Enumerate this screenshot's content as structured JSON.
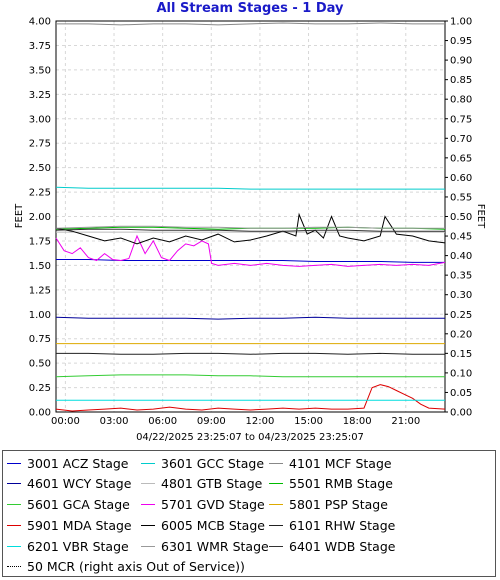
{
  "chart_data": {
    "type": "line",
    "title": "All Stream Stages - 1 Day",
    "ylabel": "FEET",
    "y2label": "FEET",
    "date_range": "04/22/2025 23:25:07 to 04/23/2025 23:25:07",
    "xlim": [
      0,
      24
    ],
    "ylim": [
      0,
      4
    ],
    "y2lim": [
      0,
      1
    ],
    "x_ticks": [
      {
        "value": 0.58,
        "label": "00:00"
      },
      {
        "value": 3.58,
        "label": "03:00"
      },
      {
        "value": 6.58,
        "label": "06:00"
      },
      {
        "value": 9.58,
        "label": "09:00"
      },
      {
        "value": 12.58,
        "label": "12:00"
      },
      {
        "value": 15.58,
        "label": "15:00"
      },
      {
        "value": 18.58,
        "label": "18:00"
      },
      {
        "value": 21.58,
        "label": "21:00"
      }
    ],
    "y_ticks": [
      "0.00",
      "0.25",
      "0.50",
      "0.75",
      "1.00",
      "1.25",
      "1.50",
      "1.75",
      "2.00",
      "2.25",
      "2.50",
      "2.75",
      "3.00",
      "3.25",
      "3.50",
      "3.75",
      "4.00"
    ],
    "y2_ticks": [
      "0.00",
      "0.05",
      "0.10",
      "0.15",
      "0.20",
      "0.25",
      "0.30",
      "0.35",
      "0.40",
      "0.45",
      "0.50",
      "0.55",
      "0.60",
      "0.65",
      "0.70",
      "0.75",
      "0.80",
      "0.85",
      "0.90",
      "0.95",
      "1.00"
    ],
    "grid": true,
    "legend_position": "bottom",
    "series": [
      {
        "name": "3001 ACZ Stage",
        "color": "#0000cc",
        "x": [
          0,
          2,
          4,
          6,
          8,
          10,
          12,
          14,
          16,
          18,
          20,
          22,
          24
        ],
        "values": [
          1.56,
          1.56,
          1.55,
          1.55,
          1.55,
          1.55,
          1.55,
          1.55,
          1.54,
          1.54,
          1.54,
          1.53,
          1.53
        ]
      },
      {
        "name": "3601 GCC Stage",
        "color": "#00cccc",
        "x": [
          0,
          2,
          4,
          6,
          8,
          10,
          12,
          14,
          16,
          18,
          20,
          22,
          24
        ],
        "values": [
          2.3,
          2.29,
          2.29,
          2.29,
          2.29,
          2.29,
          2.28,
          2.28,
          2.28,
          2.28,
          2.28,
          2.28,
          2.28
        ]
      },
      {
        "name": "4101 MCF Stage",
        "color": "#888888",
        "x": [
          0,
          2,
          4,
          6,
          8,
          10,
          12,
          14,
          16,
          18,
          20,
          22,
          24
        ],
        "values": [
          3.97,
          3.97,
          3.96,
          3.97,
          3.97,
          3.96,
          3.97,
          3.98,
          3.97,
          3.97,
          3.98,
          3.97,
          3.97
        ]
      },
      {
        "name": "4601 WCY Stage",
        "color": "#000099",
        "x": [
          0,
          2,
          4,
          6,
          8,
          10,
          12,
          14,
          16,
          18,
          20,
          22,
          24
        ],
        "values": [
          0.97,
          0.96,
          0.96,
          0.96,
          0.96,
          0.95,
          0.96,
          0.96,
          0.97,
          0.96,
          0.96,
          0.96,
          0.96
        ]
      },
      {
        "name": "4801 GTB Stage",
        "color": "#bbbbbb",
        "x": [
          0,
          2,
          4,
          6,
          8,
          10,
          12,
          14,
          16,
          18,
          20,
          22,
          24
        ],
        "values": [
          1.84,
          1.84,
          1.84,
          1.84,
          1.84,
          1.84,
          1.84,
          1.84,
          1.84,
          1.84,
          1.84,
          1.84,
          1.84
        ]
      },
      {
        "name": "5501 RMB Stage",
        "color": "#00bb00",
        "x": [
          0,
          2,
          4,
          6,
          8,
          10,
          12,
          14,
          16,
          18,
          20,
          22,
          24
        ],
        "values": [
          1.87,
          1.88,
          1.89,
          1.89,
          1.88,
          1.87,
          1.88,
          1.88,
          1.88,
          1.89,
          1.88,
          1.88,
          1.87
        ]
      },
      {
        "name": "5601 GCA Stage",
        "color": "#33cc33",
        "x": [
          0,
          2,
          4,
          6,
          8,
          10,
          12,
          14,
          16,
          18,
          20,
          22,
          24
        ],
        "values": [
          0.36,
          0.37,
          0.38,
          0.38,
          0.38,
          0.37,
          0.37,
          0.36,
          0.36,
          0.36,
          0.36,
          0.36,
          0.36
        ]
      },
      {
        "name": "5701 GVD Stage",
        "color": "#ee00ee",
        "x": [
          0,
          0.5,
          1,
          1.5,
          2,
          2.5,
          3,
          3.5,
          4,
          4.5,
          5,
          5.5,
          6,
          6.5,
          7,
          7.5,
          8,
          8.5,
          9,
          9.4,
          9.6,
          10,
          11,
          12,
          13,
          14,
          15,
          16,
          17,
          18,
          19,
          20,
          21,
          22,
          23,
          24
        ],
        "values": [
          1.78,
          1.65,
          1.62,
          1.68,
          1.58,
          1.55,
          1.62,
          1.56,
          1.55,
          1.57,
          1.8,
          1.62,
          1.75,
          1.58,
          1.55,
          1.65,
          1.72,
          1.7,
          1.75,
          1.72,
          1.52,
          1.5,
          1.52,
          1.5,
          1.52,
          1.5,
          1.49,
          1.5,
          1.51,
          1.49,
          1.5,
          1.51,
          1.5,
          1.51,
          1.5,
          1.53
        ]
      },
      {
        "name": "5801 PSP Stage",
        "color": "#ddaa00",
        "x": [
          0,
          2,
          4,
          6,
          8,
          10,
          12,
          14,
          16,
          18,
          20,
          22,
          24
        ],
        "values": [
          0.7,
          0.7,
          0.7,
          0.7,
          0.7,
          0.7,
          0.7,
          0.7,
          0.7,
          0.7,
          0.7,
          0.7,
          0.7
        ]
      },
      {
        "name": "5901 MDA Stage",
        "color": "#dd0000",
        "x": [
          0,
          1,
          2,
          3,
          4,
          5,
          6,
          7,
          8,
          9,
          10,
          11,
          12,
          13,
          14,
          15,
          16,
          17,
          18,
          19,
          19.5,
          20,
          20.5,
          21,
          21.5,
          22,
          22.5,
          23,
          24
        ],
        "values": [
          0.03,
          0.01,
          0.02,
          0.03,
          0.04,
          0.02,
          0.03,
          0.05,
          0.03,
          0.02,
          0.04,
          0.03,
          0.02,
          0.03,
          0.04,
          0.03,
          0.04,
          0.03,
          0.03,
          0.04,
          0.25,
          0.28,
          0.26,
          0.22,
          0.18,
          0.14,
          0.08,
          0.04,
          0.03
        ]
      },
      {
        "name": "6005 MCB Stage",
        "color": "#000000",
        "x": [
          0,
          1,
          2,
          3,
          4,
          5,
          6,
          7,
          8,
          9,
          10,
          11,
          12,
          13,
          14,
          14.8,
          15,
          15.5,
          16,
          16.5,
          17,
          17.5,
          18,
          19,
          20,
          20.3,
          21,
          22,
          23,
          24
        ],
        "values": [
          1.88,
          1.85,
          1.8,
          1.75,
          1.78,
          1.72,
          1.78,
          1.74,
          1.8,
          1.76,
          1.82,
          1.74,
          1.76,
          1.8,
          1.85,
          1.8,
          2.02,
          1.82,
          1.86,
          1.78,
          2.0,
          1.8,
          1.78,
          1.75,
          1.8,
          2.0,
          1.82,
          1.8,
          1.75,
          1.73
        ]
      },
      {
        "name": "6101 RHW Stage",
        "color": "#222222",
        "x": [
          0,
          2,
          4,
          6,
          8,
          10,
          12,
          14,
          16,
          18,
          20,
          22,
          24
        ],
        "values": [
          0.6,
          0.6,
          0.59,
          0.59,
          0.6,
          0.6,
          0.59,
          0.6,
          0.6,
          0.59,
          0.6,
          0.59,
          0.59
        ]
      },
      {
        "name": "6201 VBR Stage",
        "color": "#00dddd",
        "x": [
          0,
          2,
          4,
          6,
          8,
          10,
          12,
          14,
          16,
          18,
          20,
          22,
          24
        ],
        "values": [
          0.12,
          0.12,
          0.12,
          0.12,
          0.12,
          0.12,
          0.12,
          0.12,
          0.12,
          0.12,
          0.12,
          0.12,
          0.12
        ]
      },
      {
        "name": "6301 WMR Stage",
        "color": "#999999",
        "x": [
          0,
          2,
          4,
          6,
          8,
          10,
          12,
          14,
          16,
          18,
          20,
          22,
          24
        ],
        "values": [
          1.88,
          1.89,
          1.9,
          1.9,
          1.89,
          1.89,
          1.88,
          1.88,
          1.89,
          1.89,
          1.88,
          1.88,
          1.88
        ]
      },
      {
        "name": "6401 WDB Stage",
        "color": "#333333",
        "x": [
          0,
          2,
          4,
          6,
          8,
          10,
          12,
          14,
          16,
          18,
          20,
          22,
          24
        ],
        "values": [
          1.86,
          1.87,
          1.87,
          1.86,
          1.86,
          1.86,
          1.85,
          1.85,
          1.86,
          1.86,
          1.85,
          1.85,
          1.85
        ]
      }
    ],
    "extra_legend": {
      "name": "50 MCR (right axis Out of Service))",
      "color": "#000000",
      "style": "dotted"
    }
  }
}
